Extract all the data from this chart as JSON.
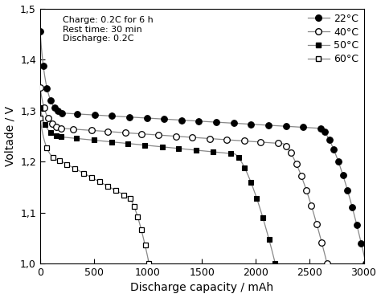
{
  "title": "",
  "xlabel": "Discharge capacity / mAh",
  "ylabel": "Voltade / V",
  "xlim": [
    0,
    3000
  ],
  "ylim": [
    1.0,
    1.5
  ],
  "annotation": "Charge: 0.2C for 6 h\nRest time: 30 min\nDischarge: 0.2C",
  "background_color": "#ffffff",
  "curve_22": {
    "x_end": 3020,
    "v_start": 1.455,
    "v_mid": 1.295,
    "v_flat_end": 1.265,
    "drop_start_x": 2600,
    "n_markers": 32
  },
  "curve_40": {
    "x_end": 2660,
    "v_start": 1.345,
    "v_mid": 1.265,
    "v_flat_end": 1.235,
    "drop_start_x": 2250,
    "n_markers": 28
  },
  "curve_50": {
    "x_end": 2180,
    "v_start": 1.305,
    "v_mid": 1.248,
    "v_flat_end": 1.215,
    "drop_start_x": 1800,
    "n_markers": 22
  },
  "curve_60": {
    "x_end": 1010,
    "v_start": 1.285,
    "v_mid": 1.2,
    "v_flat_end": 1.13,
    "drop_start_x": 820,
    "n_markers": 18
  }
}
